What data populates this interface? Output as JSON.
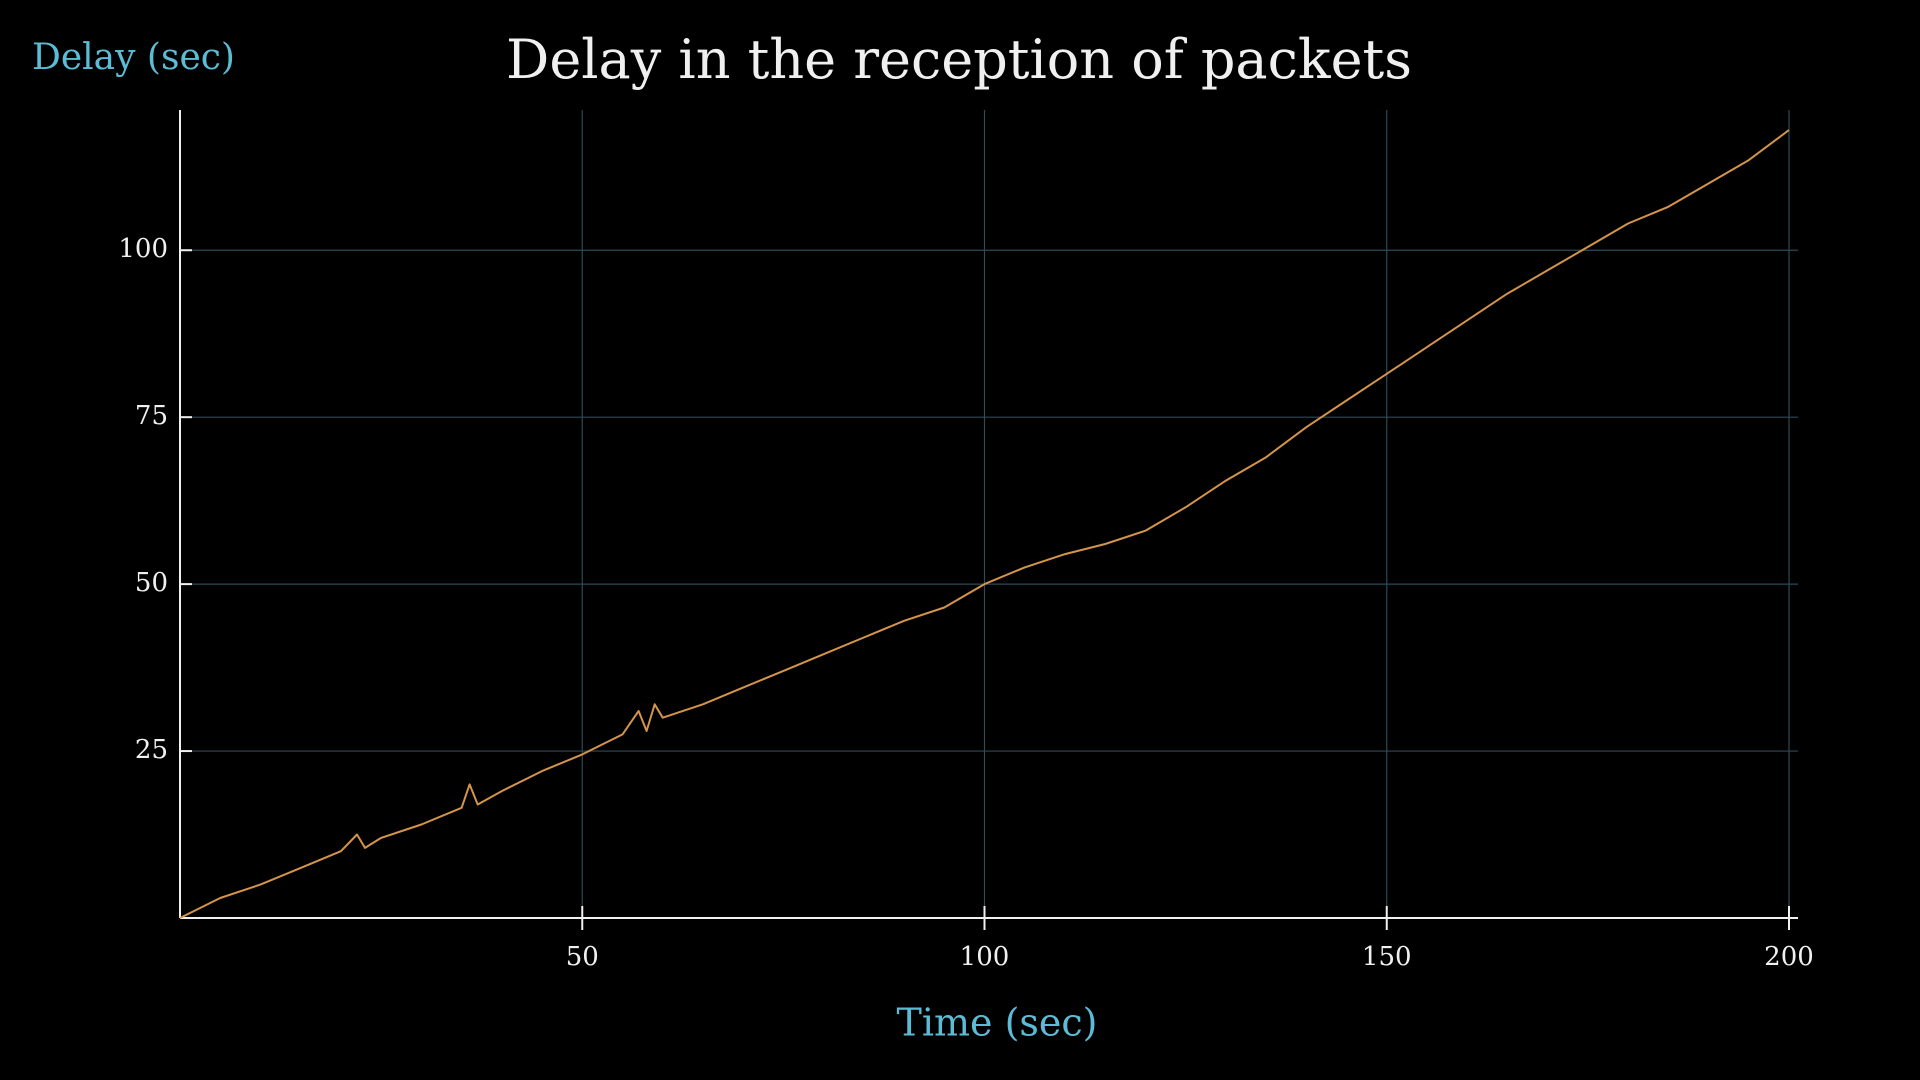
{
  "chart_data": {
    "type": "line",
    "title": "Delay in the reception of packets",
    "x_label": "Time (sec)",
    "y_label": "Delay (sec)",
    "x": [
      0,
      5,
      10,
      15,
      20,
      22,
      23,
      25,
      30,
      35,
      36,
      37,
      40,
      45,
      50,
      55,
      57,
      58,
      59,
      60,
      65,
      70,
      75,
      80,
      85,
      90,
      95,
      100,
      105,
      110,
      115,
      120,
      125,
      130,
      135,
      140,
      145,
      150,
      155,
      160,
      165,
      170,
      175,
      180,
      185,
      190,
      195,
      200
    ],
    "values": [
      0,
      3,
      5,
      7.5,
      10,
      12.5,
      10.5,
      12,
      14,
      16.5,
      20,
      17,
      19,
      22,
      24.5,
      27.5,
      31,
      28,
      32,
      30,
      32,
      34.5,
      37,
      39.5,
      42,
      44.5,
      46.5,
      50,
      52.5,
      54.5,
      56,
      58,
      61.5,
      65.5,
      69,
      73.5,
      77.5,
      81.5,
      85.5,
      89.5,
      93.5,
      97,
      100.5,
      104,
      106.5,
      110,
      113.5,
      118
    ],
    "color": "#d4944a",
    "xlim": [
      0,
      200
    ],
    "ylim": [
      0,
      121
    ],
    "xticks": [
      50,
      100,
      150,
      200
    ],
    "yticks": [
      25,
      50,
      75,
      100
    ],
    "grid": true
  }
}
